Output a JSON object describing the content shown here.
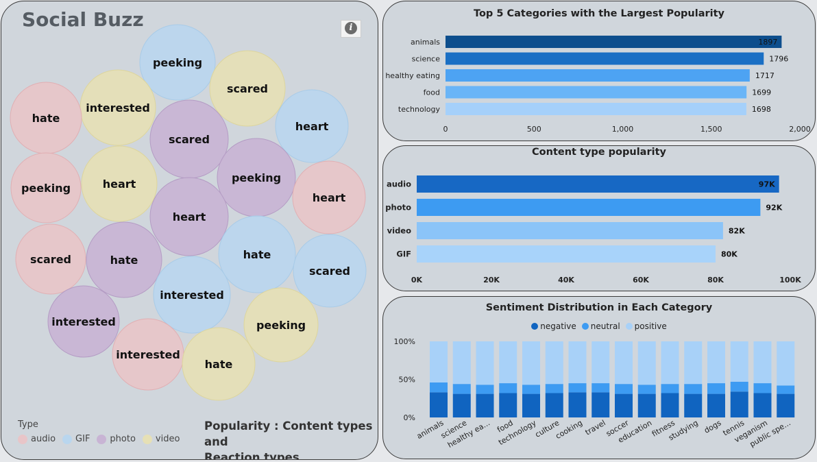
{
  "app": {
    "title": "Social Buzz"
  },
  "bubble_panel": {
    "caption_line1": "Popularity : Content types and",
    "caption_line2": "Reaction types",
    "legend_title": "Type",
    "legend": [
      {
        "label": "audio",
        "color": "#e8c5c8"
      },
      {
        "label": "GIF",
        "color": "#b9d6ee"
      },
      {
        "label": "photo",
        "color": "#c8b4d4"
      },
      {
        "label": "video",
        "color": "#e6e0b5"
      }
    ],
    "bubbles": [
      {
        "label": "peeking",
        "type": "GIF"
      },
      {
        "label": "scared",
        "type": "video"
      },
      {
        "label": "interested",
        "type": "video"
      },
      {
        "label": "hate",
        "type": "audio"
      },
      {
        "label": "scared",
        "type": "photo"
      },
      {
        "label": "heart",
        "type": "GIF"
      },
      {
        "label": "peeking",
        "type": "audio"
      },
      {
        "label": "heart",
        "type": "video"
      },
      {
        "label": "peeking",
        "type": "photo"
      },
      {
        "label": "heart",
        "type": "audio"
      },
      {
        "label": "heart",
        "type": "photo"
      },
      {
        "label": "scared",
        "type": "audio"
      },
      {
        "label": "hate",
        "type": "photo"
      },
      {
        "label": "hate",
        "type": "GIF"
      },
      {
        "label": "scared",
        "type": "GIF"
      },
      {
        "label": "interested",
        "type": "GIF"
      },
      {
        "label": "interested",
        "type": "photo"
      },
      {
        "label": "peeking",
        "type": "video"
      },
      {
        "label": "interested",
        "type": "audio"
      },
      {
        "label": "hate",
        "type": "video"
      }
    ]
  },
  "chart_data": [
    {
      "type": "bar",
      "orientation": "horizontal",
      "title": "Top 5 Categories with the Largest Popularity",
      "categories": [
        "animals",
        "science",
        "healthy eating",
        "food",
        "technology"
      ],
      "values": [
        1897,
        1796,
        1717,
        1699,
        1698
      ],
      "value_labels": [
        "1897",
        "1796",
        "1717",
        "1699",
        "1698"
      ],
      "colors": [
        "#0d4e8d",
        "#1a6fc4",
        "#4da3f3",
        "#6ab5f7",
        "#a5d0fa"
      ],
      "xlim": [
        0,
        2000
      ],
      "xticks": [
        0,
        500,
        1000,
        1500,
        2000
      ],
      "xtick_labels": [
        "0",
        "500",
        "1,000",
        "1,500",
        "2,000"
      ],
      "grid": false
    },
    {
      "type": "bar",
      "orientation": "horizontal",
      "title": "Content type popularity",
      "categories": [
        "audio",
        "photo",
        "video",
        "GIF"
      ],
      "values": [
        97000,
        92000,
        82000,
        80000
      ],
      "value_labels": [
        "97K",
        "92K",
        "82K",
        "80K"
      ],
      "colors": [
        "#1768c4",
        "#3d9bf2",
        "#8bc4f8",
        "#a8d3fa"
      ],
      "xlim": [
        0,
        100000
      ],
      "xticks": [
        0,
        20000,
        40000,
        60000,
        80000,
        100000
      ],
      "xtick_labels": [
        "0K",
        "20K",
        "40K",
        "60K",
        "80K",
        "100K"
      ],
      "grid": false
    },
    {
      "type": "bar",
      "stacked": true,
      "percent": true,
      "title": "Sentiment Distribution in Each Category",
      "legend_position": "top-center",
      "categories": [
        "animals",
        "science",
        "healthy ea...",
        "food",
        "technology",
        "culture",
        "cooking",
        "travel",
        "soccer",
        "education",
        "fitness",
        "studying",
        "dogs",
        "tennis",
        "veganism",
        "public spe..."
      ],
      "series": [
        {
          "name": "negative",
          "color": "#1064c0",
          "values": [
            33,
            31,
            31,
            32,
            31,
            32,
            33,
            33,
            31,
            31,
            32,
            31,
            31,
            34,
            32,
            31
          ]
        },
        {
          "name": "neutral",
          "color": "#3d9bf2",
          "values": [
            13,
            13,
            12,
            13,
            12,
            12,
            12,
            12,
            13,
            12,
            12,
            13,
            14,
            13,
            13,
            11
          ]
        },
        {
          "name": "positive",
          "color": "#a8d1f8",
          "values": [
            54,
            56,
            57,
            55,
            57,
            56,
            55,
            55,
            56,
            57,
            56,
            56,
            55,
            53,
            55,
            58
          ]
        }
      ],
      "ylim": [
        0,
        100
      ],
      "yticks": [
        0,
        50,
        100
      ],
      "ytick_labels": [
        "0%",
        "50%",
        "100%"
      ],
      "grid": false
    }
  ]
}
